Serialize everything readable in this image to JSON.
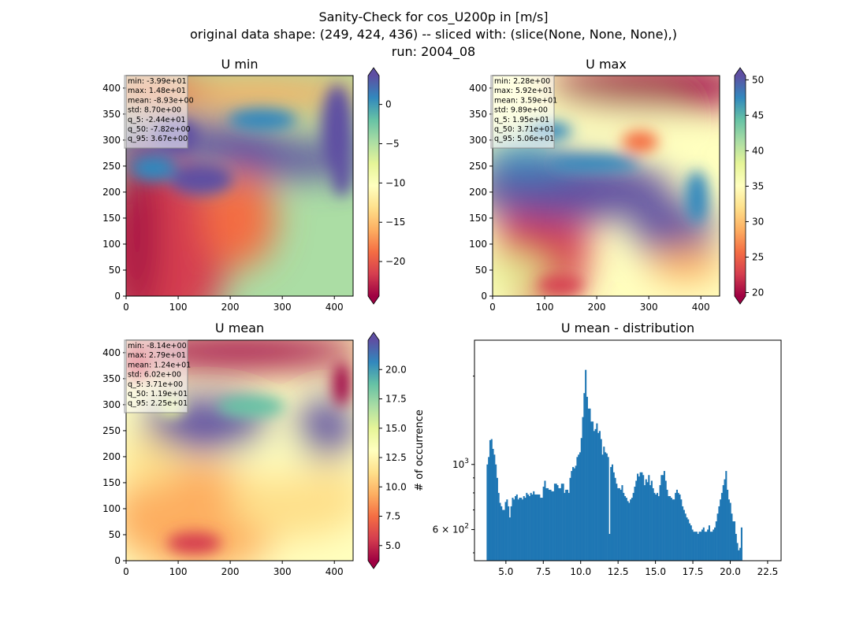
{
  "figure": {
    "title_lines": [
      "Sanity-Check for cos_U200p in [m/s]",
      "original data shape: (249, 424, 436) -- sliced with: (slice(None, None, None),)",
      "run: 2004_08"
    ]
  },
  "colormap": [
    "#9e0142",
    "#d53e4f",
    "#f46d43",
    "#fdae61",
    "#fee08b",
    "#ffffbf",
    "#e6f598",
    "#abdda4",
    "#66c2a5",
    "#3288bd",
    "#5e4fa2"
  ],
  "panels": [
    {
      "title": "U min",
      "xticks": [
        0,
        100,
        200,
        300,
        400
      ],
      "yticks": [
        0,
        50,
        100,
        150,
        200,
        250,
        300,
        350,
        400
      ],
      "colorbar": {
        "ticks": [
          "0",
          "−5",
          "−10",
          "−15",
          "−20"
        ],
        "tick_values": [
          0,
          -5,
          -10,
          -15,
          -20
        ],
        "vmin": -24.4,
        "vmax": 3.67,
        "extend": "both"
      },
      "stats": [
        "min: -3.99e+01",
        "max: 1.48e+01",
        "mean: -8.93e+00",
        "std: 8.70e+00",
        "q_5: -2.44e+01",
        "q_50: -7.82e+00",
        "q_95: 3.67e+00"
      ]
    },
    {
      "title": "U max",
      "xticks": [
        0,
        100,
        200,
        300,
        400
      ],
      "yticks": [
        0,
        50,
        100,
        150,
        200,
        250,
        300,
        350,
        400
      ],
      "colorbar": {
        "ticks": [
          "50",
          "45",
          "40",
          "35",
          "30",
          "25",
          "20"
        ],
        "tick_values": [
          50,
          45,
          40,
          35,
          30,
          25,
          20
        ],
        "vmin": 19.5,
        "vmax": 50.6,
        "extend": "both"
      },
      "stats": [
        "min: 2.28e+00",
        "max: 5.92e+01",
        "mean: 3.59e+01",
        "std: 9.89e+00",
        "q_5: 1.95e+01",
        "q_50: 3.71e+01",
        "q_95: 5.06e+01"
      ]
    },
    {
      "title": "U mean",
      "xticks": [
        0,
        100,
        200,
        300,
        400
      ],
      "yticks": [
        0,
        50,
        100,
        150,
        200,
        250,
        300,
        350,
        400
      ],
      "colorbar": {
        "ticks": [
          "20.0",
          "17.5",
          "15.0",
          "12.5",
          "10.0",
          "7.5",
          "5.0"
        ],
        "tick_values": [
          20,
          17.5,
          15,
          12.5,
          10,
          7.5,
          5
        ],
        "vmin": 3.71,
        "vmax": 22.5,
        "extend": "both"
      },
      "stats": [
        "min: -8.14e+00",
        "max: 2.79e+01",
        "mean: 1.24e+01",
        "std: 6.02e+00",
        "q_5: 3.71e+00",
        "q_50: 1.19e+01",
        "q_95: 2.25e+01"
      ]
    }
  ],
  "chart_data": [
    {
      "type": "heatmap",
      "title": "U min",
      "xlim": [
        0,
        436
      ],
      "ylim": [
        0,
        424
      ],
      "colorbar_range": [
        -24.4,
        3.67
      ],
      "colormap": "Spectral"
    },
    {
      "type": "heatmap",
      "title": "U max",
      "xlim": [
        0,
        436
      ],
      "ylim": [
        0,
        424
      ],
      "colorbar_range": [
        19.5,
        50.6
      ],
      "colormap": "Spectral"
    },
    {
      "type": "heatmap",
      "title": "U mean",
      "xlim": [
        0,
        436
      ],
      "ylim": [
        0,
        424
      ],
      "colorbar_range": [
        3.71,
        22.5
      ],
      "colormap": "Spectral"
    },
    {
      "type": "bar",
      "title": "U mean - distribution",
      "ylabel": "# of occurrence",
      "yscale": "log",
      "xlim": [
        2.9,
        23.4
      ],
      "ylim": [
        470,
        2650
      ],
      "xticks": [
        "5.0",
        "7.5",
        "10.0",
        "12.5",
        "15.0",
        "17.5",
        "20.0",
        "22.5"
      ],
      "xtick_values": [
        5,
        7.5,
        10,
        12.5,
        15,
        17.5,
        20,
        22.5
      ],
      "yticks": [
        "10^3",
        "6 × 10^2"
      ],
      "ytick_values": [
        1000,
        600
      ],
      "bar_color": "#1f77b4",
      "bin_start": 3.71,
      "bin_width": 0.0939,
      "counts": [
        1000,
        1060,
        1210,
        1220,
        1130,
        1080,
        1000,
        900,
        800,
        740,
        720,
        700,
        700,
        745,
        760,
        720,
        660,
        720,
        770,
        760,
        780,
        790,
        760,
        770,
        770,
        760,
        780,
        770,
        800,
        790,
        780,
        800,
        790,
        810,
        790,
        790,
        790,
        790,
        770,
        770,
        840,
        880,
        830,
        830,
        820,
        820,
        810,
        810,
        860,
        860,
        850,
        830,
        830,
        860,
        860,
        800,
        820,
        820,
        800,
        900,
        950,
        980,
        970,
        990,
        1060,
        1080,
        1100,
        1230,
        1450,
        1750,
        2100,
        1700,
        1550,
        1550,
        1400,
        1400,
        1300,
        1320,
        1380,
        1280,
        1300,
        1220,
        1080,
        1150,
        1100,
        1090,
        1060,
        580,
        980,
        1000,
        940,
        900,
        860,
        830,
        830,
        820,
        850,
        800,
        780,
        770,
        750,
        740,
        760,
        770,
        800,
        840,
        880,
        930,
        910,
        940,
        940,
        920,
        850,
        890,
        870,
        920,
        850,
        880,
        830,
        800,
        790,
        800,
        780,
        850,
        920,
        920,
        950,
        880,
        820,
        780,
        780,
        770,
        760,
        760,
        800,
        820,
        800,
        790,
        760,
        720,
        700,
        680,
        660,
        650,
        630,
        620,
        600,
        590,
        590,
        590,
        580,
        590,
        590,
        600,
        610,
        590,
        590,
        600,
        620,
        590,
        590,
        600,
        610,
        640,
        680,
        720,
        760,
        800,
        850,
        890,
        950,
        820,
        760,
        740,
        680,
        640,
        640,
        580,
        540,
        510,
        520,
        610
      ]
    }
  ]
}
